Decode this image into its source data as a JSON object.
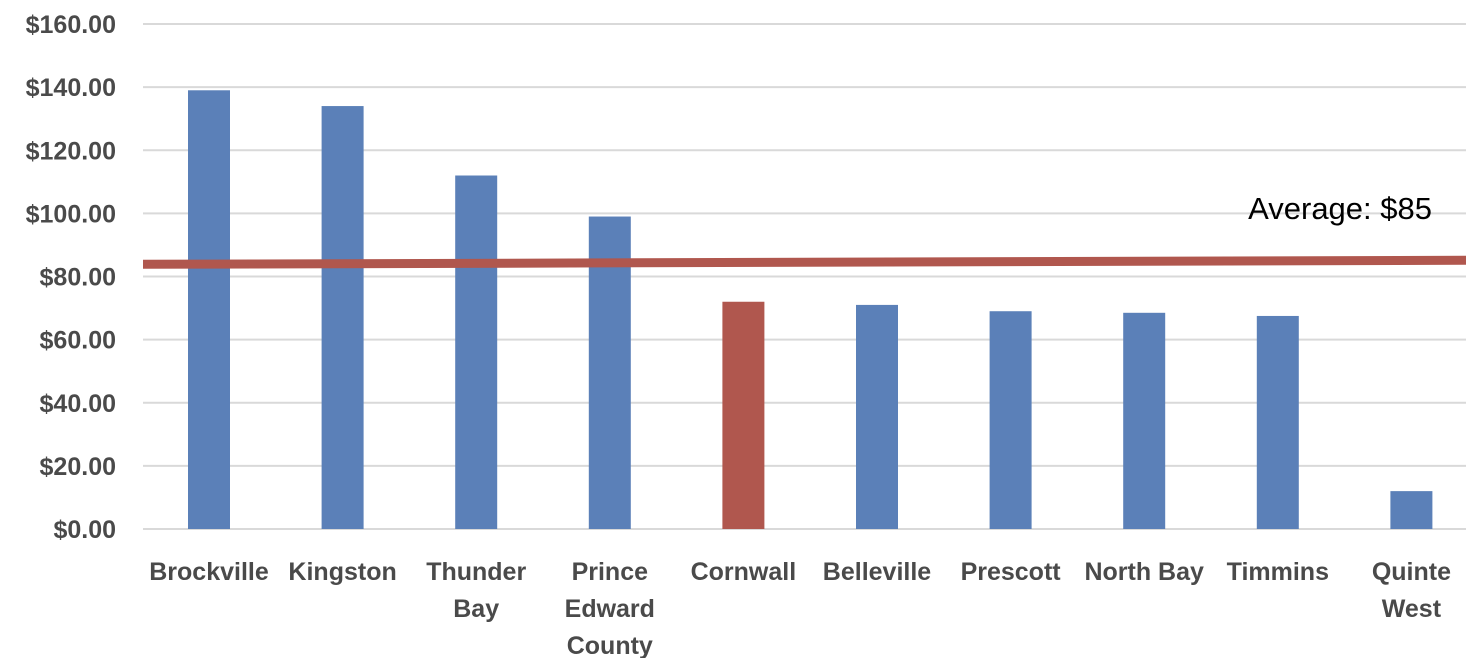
{
  "chart_data": {
    "type": "bar",
    "categories": [
      "Brockville",
      "Kingston",
      "Thunder Bay",
      "Prince Edward County",
      "Cornwall",
      "Belleville",
      "Prescott",
      "North Bay",
      "Timmins",
      "Quinte West"
    ],
    "category_label_lines": [
      [
        "Brockville"
      ],
      [
        "Kingston"
      ],
      [
        "Thunder",
        "Bay"
      ],
      [
        "Prince",
        "Edward",
        "County"
      ],
      [
        "Cornwall"
      ],
      [
        "Belleville"
      ],
      [
        "Prescott"
      ],
      [
        "North Bay"
      ],
      [
        "Timmins"
      ],
      [
        "Quinte",
        "West"
      ]
    ],
    "values": [
      139,
      134,
      112,
      99,
      72,
      71,
      69,
      68.5,
      67.5,
      12
    ],
    "highlight_category": "Cornwall",
    "ylim": [
      0,
      160
    ],
    "y_ticks": [
      0,
      20,
      40,
      60,
      80,
      100,
      120,
      140,
      160
    ],
    "y_tick_labels": [
      "$0.00",
      "$20.00",
      "$40.00",
      "$60.00",
      "$80.00",
      "$100.00",
      "$120.00",
      "$140.00",
      "$160.00"
    ],
    "reference_line": {
      "value": 84.5,
      "label": "Average: $85"
    },
    "grid": true,
    "legend": "none",
    "title": "",
    "xlabel": "",
    "ylabel": ""
  },
  "colors": {
    "bar": "#5b80b8",
    "highlight_bar": "#b0574e",
    "average_line": "#b0574e",
    "grid": "#d9d9d9",
    "tick_text": "#4a4a4a",
    "average_text": "#000000"
  }
}
